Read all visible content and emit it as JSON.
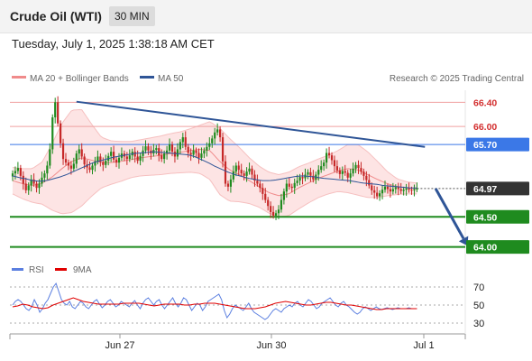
{
  "header": {
    "title": "Crude Oil (WTI)",
    "timeframe": "30 MIN"
  },
  "timestamp": "Tuesday, July 1, 2025 1:38:18 AM CET",
  "legend": {
    "bollinger": "MA 20 + Bollinger Bands",
    "ma50": "MA 50",
    "credit": "Research © 2025 Trading Central",
    "rsi": "RSI",
    "rsi_ma": "9MA"
  },
  "colors": {
    "bollinger": "#f08b8b",
    "band_fill": "#fde4e4",
    "ma50": "#2f5597",
    "support": "#1f8b1f",
    "resistance_line": "#f0a0a0",
    "pivot": "#3b78e7",
    "current": "#333333",
    "up_candle": "#1f8b1f",
    "down_candle": "#c62828",
    "rsi": "#5b7fe0",
    "rsi_ma": "#e00000"
  },
  "chart_data": [
    {
      "type": "candlestick",
      "x_ticks": [
        "Jun 27",
        "Jun 30",
        "Jul 1"
      ],
      "ylim": [
        63.8,
        66.6
      ],
      "current_price": 64.97,
      "levels": [
        {
          "value": 66.4,
          "label": "66.40",
          "kind": "resistance"
        },
        {
          "value": 66.0,
          "label": "66.00",
          "kind": "resistance"
        },
        {
          "value": 65.7,
          "label": "65.70",
          "kind": "pivot"
        },
        {
          "value": 64.97,
          "label": "64.97",
          "kind": "current"
        },
        {
          "value": 64.5,
          "label": "64.50",
          "kind": "support"
        },
        {
          "value": 64.0,
          "label": "64.00",
          "kind": "support"
        }
      ],
      "trendline": {
        "from": [
          24,
          66.41
        ],
        "to": [
          155,
          65.66
        ]
      },
      "forecast_arrow": {
        "from": [
          159,
          64.97
        ],
        "to": [
          171,
          64.02
        ]
      },
      "close_series": [
        65.22,
        65.26,
        65.31,
        65.18,
        65.05,
        64.94,
        65.02,
        65.12,
        65.05,
        64.98,
        65.05,
        65.15,
        65.22,
        65.35,
        65.62,
        66.15,
        66.4,
        66.05,
        65.72,
        65.46,
        65.4,
        65.35,
        65.3,
        65.38,
        65.55,
        65.62,
        65.5,
        65.37,
        65.32,
        65.28,
        65.35,
        65.42,
        65.5,
        65.41,
        65.36,
        65.43,
        65.51,
        65.58,
        65.45,
        65.4,
        65.48,
        65.55,
        65.5,
        65.46,
        65.52,
        65.58,
        65.5,
        65.43,
        65.51,
        65.6,
        65.67,
        65.6,
        65.55,
        65.61,
        65.64,
        65.52,
        65.46,
        65.55,
        65.6,
        65.7,
        65.58,
        65.5,
        65.62,
        65.74,
        65.82,
        65.66,
        65.56,
        65.53,
        65.6,
        65.56,
        65.48,
        65.55,
        65.6,
        65.66,
        65.72,
        65.8,
        65.9,
        65.95,
        65.82,
        65.42,
        65.05,
        65.0,
        65.12,
        65.25,
        65.35,
        65.28,
        65.22,
        65.18,
        65.25,
        65.3,
        65.2,
        65.1,
        65.05,
        64.98,
        64.88,
        64.78,
        64.68,
        64.58,
        64.52,
        64.56,
        64.62,
        64.78,
        64.92,
        65.05,
        65.0,
        64.98,
        65.06,
        65.1,
        65.16,
        65.14,
        65.2,
        65.24,
        65.18,
        65.12,
        65.2,
        65.28,
        65.34,
        65.4,
        65.56,
        65.52,
        65.44,
        65.34,
        65.27,
        65.21,
        65.26,
        65.23,
        65.15,
        65.22,
        65.3,
        65.36,
        65.31,
        65.25,
        65.18,
        65.11,
        65.02,
        64.94,
        64.9,
        64.84,
        64.89,
        64.95,
        65.0,
        64.96,
        64.92,
        64.96,
        64.99,
        64.96,
        64.93,
        64.95,
        64.97,
        64.95,
        64.94,
        64.96,
        64.97
      ],
      "ma50_series": [
        65.18,
        65.15,
        65.13,
        65.1,
        65.09,
        65.1,
        65.13,
        65.16,
        65.2,
        65.25,
        65.3,
        65.35,
        65.4,
        65.43,
        65.46,
        65.49,
        65.51,
        65.53,
        65.55,
        65.56,
        65.57,
        65.58,
        65.57,
        65.56,
        65.55,
        65.54,
        65.53,
        65.5,
        65.45,
        65.4,
        65.34,
        65.29,
        65.24,
        65.2,
        65.17,
        65.14,
        65.12,
        65.1,
        65.1,
        65.11,
        65.13,
        65.15,
        65.17,
        65.18,
        65.17,
        65.16,
        65.14,
        65.13,
        65.12,
        65.11,
        65.1,
        65.08,
        65.06,
        65.05,
        65.04,
        65.02,
        65.01,
        65.0,
        64.99,
        64.98,
        64.98
      ],
      "bb_mid_series": [
        65.1,
        65.05,
        65.02,
        65.06,
        65.16,
        65.3,
        65.42,
        65.48,
        65.44,
        65.4,
        65.4,
        65.42,
        65.45,
        65.48,
        65.5,
        65.52,
        65.55,
        65.57,
        65.6,
        65.62,
        65.6,
        65.42,
        65.28,
        65.2,
        65.1,
        65.0,
        64.9,
        64.85,
        64.88,
        64.98,
        65.06,
        65.14,
        65.2,
        65.26,
        65.3,
        65.28,
        65.2,
        65.12,
        65.05,
        65.0,
        64.98,
        64.97
      ],
      "bb_width_series": [
        0.22,
        0.25,
        0.28,
        0.35,
        0.55,
        0.75,
        0.85,
        0.8,
        0.6,
        0.42,
        0.36,
        0.33,
        0.3,
        0.3,
        0.31,
        0.32,
        0.33,
        0.34,
        0.36,
        0.4,
        0.48,
        0.55,
        0.52,
        0.45,
        0.38,
        0.34,
        0.34,
        0.35,
        0.36,
        0.35,
        0.33,
        0.32,
        0.32,
        0.34,
        0.4,
        0.42,
        0.38,
        0.3,
        0.2,
        0.13,
        0.1,
        0.09
      ]
    },
    {
      "type": "line",
      "title": "RSI",
      "y_ticks": [
        "70",
        "50",
        "30"
      ],
      "ylim": [
        24,
        76
      ],
      "rsi_series": [
        50,
        54,
        56,
        54,
        50,
        46,
        44,
        48,
        56,
        50,
        42,
        46,
        52,
        56,
        63,
        70,
        74,
        65,
        56,
        52,
        50,
        54,
        48,
        46,
        50,
        54,
        52,
        48,
        46,
        50,
        54,
        56,
        51,
        47,
        50,
        54,
        56,
        52,
        48,
        50,
        54,
        52,
        50,
        48,
        52,
        55,
        50,
        46,
        52,
        56,
        58,
        54,
        50,
        54,
        56,
        50,
        46,
        50,
        54,
        58,
        52,
        48,
        52,
        58,
        56,
        50,
        44,
        48,
        52,
        50,
        44,
        48,
        54,
        56,
        58,
        60,
        62,
        56,
        44,
        36,
        40,
        46,
        50,
        48,
        46,
        44,
        48,
        52,
        46,
        42,
        40,
        38,
        36,
        34,
        36,
        40,
        44,
        46,
        44,
        42,
        46,
        48,
        50,
        48,
        52,
        54,
        50,
        48,
        52,
        56,
        54,
        50,
        46,
        48,
        52,
        54,
        56,
        58,
        54,
        50,
        48,
        52,
        54,
        50,
        48,
        45,
        42,
        40,
        42,
        46,
        48,
        46,
        44,
        46,
        48,
        46,
        45,
        46,
        47,
        46,
        45,
        46,
        47,
        46,
        46,
        46,
        47,
        46,
        46,
        46
      ],
      "rsi_ma_series": [
        48,
        49,
        51,
        50,
        48,
        47,
        46,
        47,
        50,
        52,
        54,
        56,
        58,
        56,
        54,
        53,
        52,
        51,
        51,
        51,
        51,
        51,
        52,
        52,
        52,
        52,
        51,
        50,
        49,
        50,
        51,
        51,
        51,
        51,
        50,
        50,
        51,
        51,
        52,
        52,
        52,
        51,
        50,
        49,
        48,
        47,
        46,
        46,
        46,
        47,
        48,
        50,
        52,
        53,
        54,
        53,
        52,
        51,
        50,
        50,
        51,
        52,
        53,
        53,
        52,
        51,
        50,
        50,
        49,
        48,
        47,
        46,
        45,
        45,
        46,
        46,
        46,
        46,
        46,
        46,
        46
      ]
    }
  ]
}
